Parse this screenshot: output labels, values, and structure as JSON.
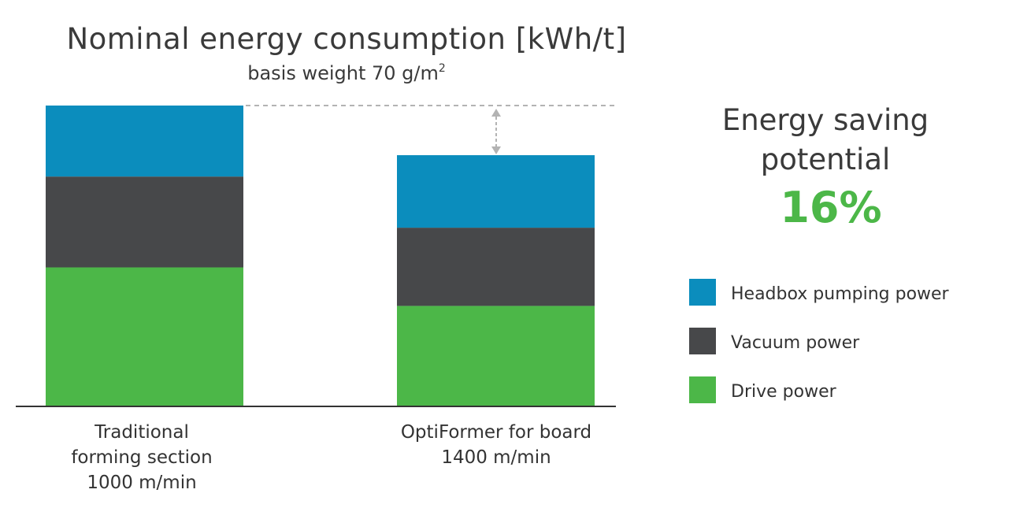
{
  "chart_data": {
    "type": "bar",
    "stacked": true,
    "title": "Nominal energy consumption [kWh/t]",
    "subtitle_base": "basis weight 70 g/m",
    "subtitle_sup": "2",
    "categories": [
      [
        "Traditional",
        "forming section",
        "1000 m/min"
      ],
      [
        "OptiFormer for board",
        "1400 m/min"
      ]
    ],
    "series": [
      {
        "name": "Drive power",
        "color": "#4cb748",
        "values": [
          46.2,
          33.4
        ]
      },
      {
        "name": "Vacuum power",
        "color": "#47484a",
        "values": [
          30.2,
          26.0
        ]
      },
      {
        "name": "Headbox pumping power",
        "color": "#0b8dbd",
        "values": [
          23.6,
          24.1
        ]
      }
    ],
    "ylim": [
      0,
      100
    ],
    "grid": false,
    "legend_position": "right",
    "axis_color": "#333333"
  },
  "annotation": {
    "line1": "Energy saving",
    "line2": "potential",
    "value": "16%",
    "value_color": "#4cb748"
  }
}
